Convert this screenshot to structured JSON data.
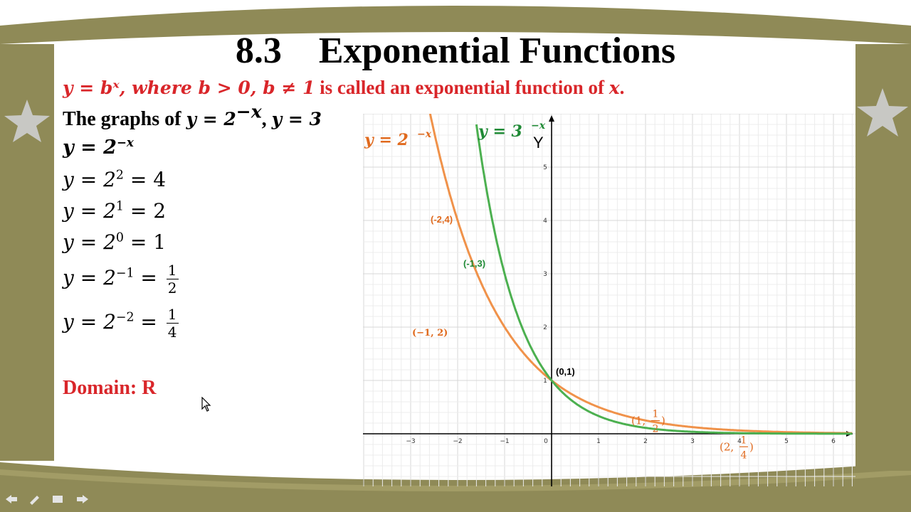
{
  "slide": {
    "title": "8.3    Exponential Functions",
    "definition": {
      "math": "y = bˣ, where b > 0, b ≠ 1",
      "text": " is called an exponential function of ",
      "var": "x",
      "end": "."
    },
    "graphs_intro": {
      "text": "The graphs of ",
      "eq1": "y = 2",
      "eq1_exp": "−x",
      "sep": ", ",
      "eq2": "y = 3"
    },
    "eq_heading": {
      "base": "y = 2",
      "exp": "−x"
    },
    "equations": [
      {
        "lhs": "y = 2",
        "exp": "2",
        "rhs": " = 4"
      },
      {
        "lhs": "y = 2",
        "exp": "1",
        "rhs": " = 2"
      },
      {
        "lhs": "y = 2",
        "exp": "0",
        "rhs": " = 1"
      },
      {
        "lhs": "y = 2",
        "exp": "−1",
        "rhs": " = ",
        "num": "1",
        "den": "2"
      },
      {
        "lhs": "y = 2",
        "exp": "−2",
        "rhs": " = ",
        "num": "1",
        "den": "4"
      }
    ],
    "domain": "Domain: R"
  },
  "colors": {
    "frame": "#8f8a57",
    "red": "#d9262a",
    "orange": "#f0924a",
    "green": "#4cb050",
    "orange_label": "#e06a1e",
    "green_label": "#1f8a35",
    "grid": "#d7d7d7",
    "grid_minor": "#ececec"
  },
  "chart_data": {
    "type": "line",
    "ylabel": "Y",
    "xlim": [
      -4,
      6.4
    ],
    "ylim": [
      -1,
      5.7
    ],
    "x_ticks": [
      -3,
      -2,
      -1,
      0,
      1,
      2,
      3,
      4,
      5,
      6
    ],
    "y_ticks": [
      1,
      2,
      3,
      4,
      5
    ],
    "x_tick_labels": [
      "−3",
      "−2",
      "−1",
      "0",
      "1",
      "2",
      "3",
      "4",
      "5",
      "6"
    ],
    "y_tick_labels": [
      "1",
      "2",
      "3",
      "4",
      "5"
    ],
    "series": [
      {
        "name": "y = 2",
        "exp": "−x",
        "color": "#f0924a",
        "base": 2,
        "x_from": -2.8,
        "x_to": 6.4
      },
      {
        "name": "y = 3",
        "exp": "−x",
        "color": "#4cb050",
        "base": 3,
        "x_from": -1.6,
        "x_to": 6.4
      }
    ],
    "points": [
      {
        "label": "(-2,4)",
        "x": -2,
        "y": 4,
        "color": "#e06a1e"
      },
      {
        "label": "(−1, 2)",
        "x": -1,
        "y": 2,
        "color": "#e06a1e"
      },
      {
        "label": "(-1,3)",
        "x": -1,
        "y": 3,
        "color": "#1f8a35"
      },
      {
        "label": "(0,1)",
        "x": 0,
        "y": 1,
        "color": "#000000"
      },
      {
        "label_pre": "(1, ",
        "num": "1",
        "den": "2",
        "label_post": ")",
        "x": 1,
        "y": 0.5,
        "color": "#e06a1e"
      },
      {
        "label_pre": "(2, ",
        "num": "1",
        "den": "4",
        "label_post": ")",
        "x": 2,
        "y": 0.25,
        "color": "#e06a1e"
      }
    ]
  }
}
